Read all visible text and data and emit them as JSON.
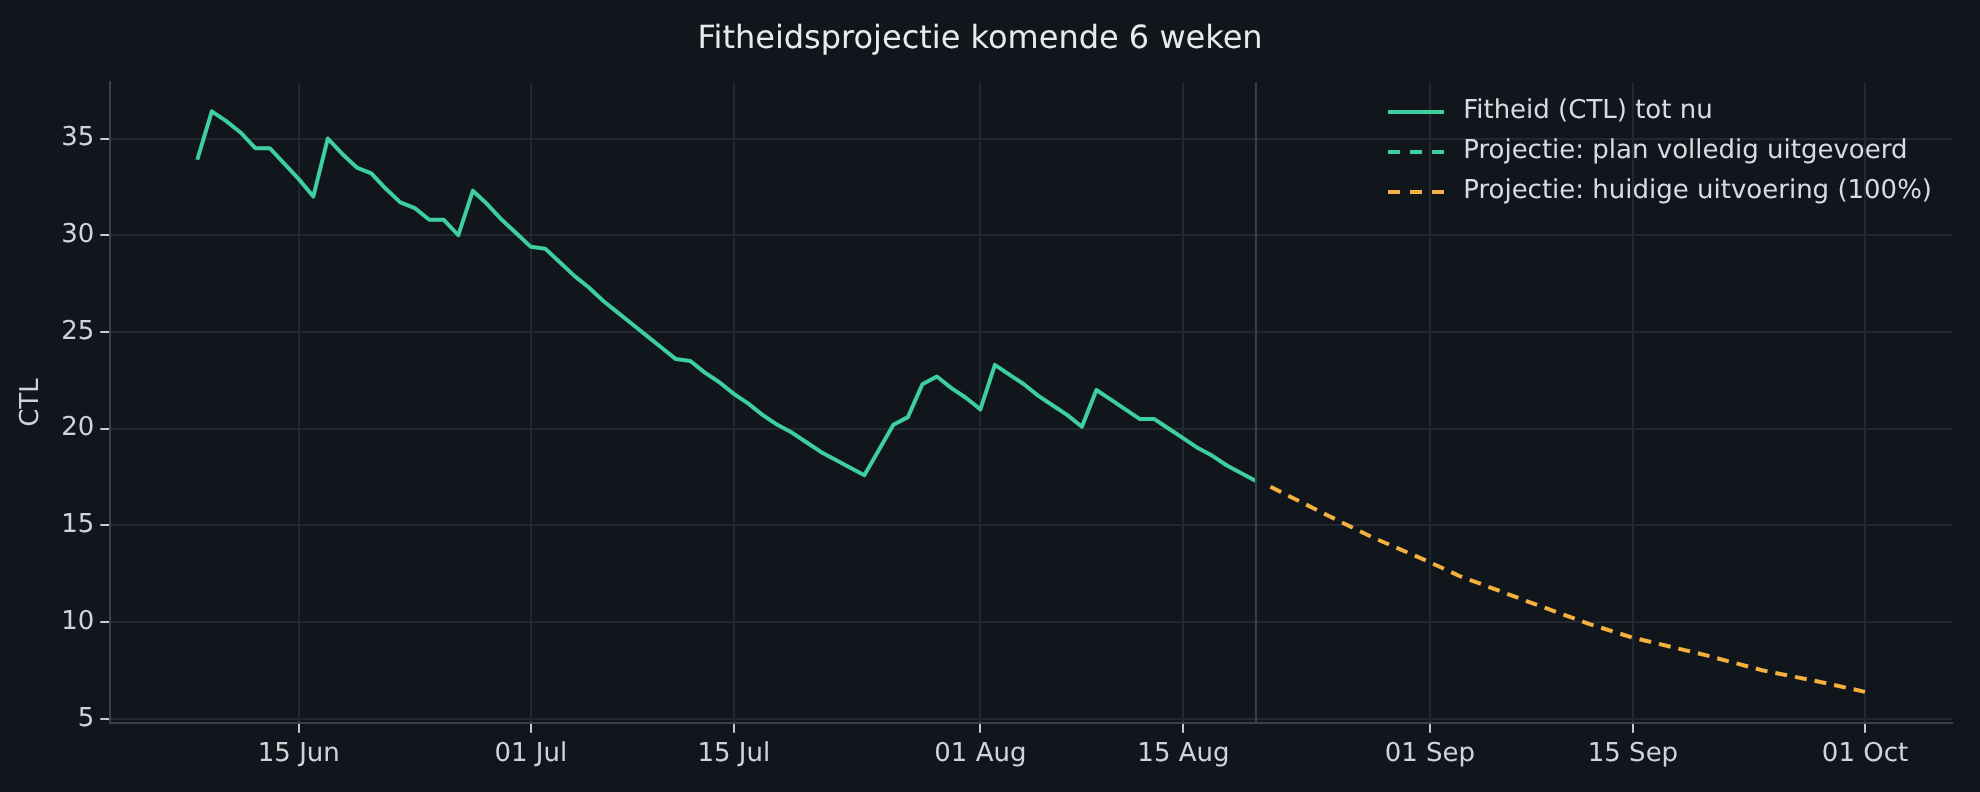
{
  "chart_data": {
    "type": "line",
    "title": "Fitheidsprojectie komende 6 weken",
    "ylabel": "CTL",
    "xlim": [
      "--06-02",
      "--10-07"
    ],
    "xticks": [
      {
        "value": "--06-15",
        "label": "15 Jun"
      },
      {
        "value": "--07-01",
        "label": "01 Jul"
      },
      {
        "value": "--07-15",
        "label": "15 Jul"
      },
      {
        "value": "--08-01",
        "label": "01 Aug"
      },
      {
        "value": "--08-15",
        "label": "15 Aug"
      },
      {
        "value": "--09-01",
        "label": "01 Sep"
      },
      {
        "value": "--09-15",
        "label": "15 Sep"
      },
      {
        "value": "--10-01",
        "label": "01 Oct"
      }
    ],
    "ylim": [
      4.8,
      37.9
    ],
    "yticks": [
      5,
      10,
      15,
      20,
      25,
      30,
      35
    ],
    "grid": true,
    "legend": "top right",
    "marker": "none",
    "ref_lines": [
      {
        "axis": "x",
        "value": "--08-20",
        "color": "#3a404c"
      }
    ],
    "series": [
      {
        "name": "Fitheid (CTL) tot nu",
        "color": "#3ecf9e",
        "line_style": "solid",
        "x": [
          "--06-08",
          "--06-09",
          "--06-10",
          "--06-11",
          "--06-12",
          "--06-13",
          "--06-14",
          "--06-15",
          "--06-16",
          "--06-17",
          "--06-18",
          "--06-19",
          "--06-20",
          "--06-21",
          "--06-22",
          "--06-23",
          "--06-24",
          "--06-25",
          "--06-26",
          "--06-27",
          "--06-28",
          "--06-29",
          "--06-30",
          "--07-01",
          "--07-02",
          "--07-03",
          "--07-04",
          "--07-05",
          "--07-06",
          "--07-07",
          "--07-08",
          "--07-09",
          "--07-10",
          "--07-11",
          "--07-12",
          "--07-13",
          "--07-14",
          "--07-15",
          "--07-16",
          "--07-17",
          "--07-18",
          "--07-19",
          "--07-20",
          "--07-21",
          "--07-22",
          "--07-23",
          "--07-24",
          "--07-25",
          "--07-26",
          "--07-27",
          "--07-28",
          "--07-29",
          "--07-30",
          "--07-31",
          "--08-01",
          "--08-02",
          "--08-03",
          "--08-04",
          "--08-05",
          "--08-06",
          "--08-07",
          "--08-08",
          "--08-09",
          "--08-10",
          "--08-11",
          "--08-12",
          "--08-13",
          "--08-14",
          "--08-15",
          "--08-16",
          "--08-17",
          "--08-18",
          "--08-19",
          "--08-20"
        ],
        "values": [
          33.9,
          36.4,
          35.9,
          35.3,
          34.5,
          34.5,
          33.7,
          32.9,
          32.0,
          35.0,
          34.2,
          33.5,
          33.2,
          32.4,
          31.7,
          31.4,
          30.8,
          30.8,
          30.0,
          32.3,
          31.6,
          30.8,
          30.1,
          29.4,
          29.3,
          28.6,
          27.9,
          27.3,
          26.6,
          26.0,
          25.4,
          24.8,
          24.2,
          23.6,
          23.5,
          22.9,
          22.4,
          21.8,
          21.3,
          20.7,
          20.2,
          19.8,
          19.3,
          18.8,
          18.4,
          18.0,
          17.6,
          18.9,
          20.2,
          20.6,
          22.3,
          22.7,
          22.1,
          21.6,
          21.0,
          23.3,
          22.8,
          22.3,
          21.7,
          21.2,
          20.7,
          20.1,
          22.0,
          21.5,
          21.0,
          20.5,
          20.5,
          20.0,
          19.5,
          19.0,
          18.6,
          18.1,
          17.7,
          17.3
        ]
      },
      {
        "name": "Projectie: plan volledig uitgevoerd",
        "color": "#3ecf9e",
        "line_style": "dashed"
      },
      {
        "name": "Projectie: huidige uitvoering (100%)",
        "color": "#f5b13d",
        "line_style": "dashed",
        "x": [
          "--08-21",
          "--08-25",
          "--08-28",
          "--09-01",
          "--09-03",
          "--09-08",
          "--09-12",
          "--09-15",
          "--09-20",
          "--09-24",
          "--09-28",
          "--10-01"
        ],
        "values": [
          17.0,
          15.5,
          14.4,
          13.1,
          12.4,
          11.0,
          9.9,
          9.2,
          8.3,
          7.5,
          6.9,
          6.4
        ]
      }
    ]
  }
}
